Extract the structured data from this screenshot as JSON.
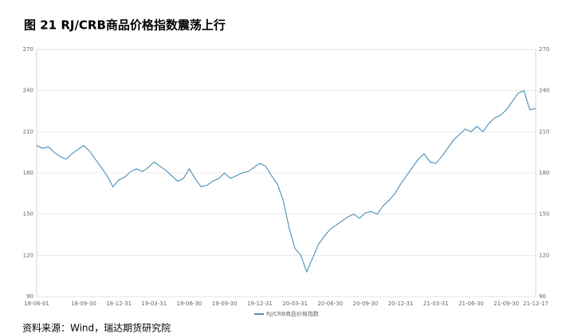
{
  "chart_data": {
    "type": "line",
    "title": "图 21 RJ/CRB商品价格指数震荡上行",
    "source": "资料来源：Wind，瑞达期货研究院",
    "categories": [
      "18-06-01",
      null,
      null,
      null,
      null,
      null,
      null,
      null,
      "18-09-30",
      null,
      null,
      null,
      null,
      null,
      "18-12-31",
      null,
      null,
      null,
      null,
      null,
      "19-03-31",
      null,
      null,
      null,
      null,
      null,
      "19-06-30",
      null,
      null,
      null,
      null,
      null,
      "19-09-30",
      null,
      null,
      null,
      null,
      null,
      "19-12-31",
      null,
      null,
      null,
      null,
      null,
      "20-03-31",
      null,
      null,
      null,
      null,
      null,
      "20-06-30",
      null,
      null,
      null,
      null,
      null,
      "20-09-30",
      null,
      null,
      null,
      null,
      null,
      "20-12-31",
      null,
      null,
      null,
      null,
      null,
      "21-03-31",
      null,
      null,
      null,
      null,
      null,
      "21-06-30",
      null,
      null,
      null,
      null,
      null,
      "21-09-30",
      null,
      null,
      null,
      null,
      "21-12-17"
    ],
    "series": [
      {
        "name": "RJ/CRB商品价格指数",
        "color": "#4a8db5",
        "values": [
          200,
          198,
          199,
          195,
          192,
          190,
          194,
          197,
          200,
          196,
          190,
          184,
          178,
          170,
          175,
          177,
          181,
          183,
          181,
          184,
          188,
          185,
          182,
          178,
          174,
          176,
          183,
          176,
          170,
          171,
          174,
          176,
          180,
          176,
          178,
          180,
          181,
          184,
          187,
          185,
          178,
          172,
          160,
          140,
          125,
          120,
          108,
          118,
          128,
          134,
          139,
          142,
          145,
          148,
          150,
          147,
          151,
          152,
          150,
          156,
          160,
          165,
          172,
          178,
          184,
          190,
          194,
          188,
          187,
          192,
          198,
          204,
          208,
          212,
          210,
          214,
          210,
          216,
          220,
          222,
          226,
          232,
          238,
          240,
          226,
          227
        ]
      }
    ],
    "ylim": [
      90,
      270
    ],
    "yticks": [
      90,
      120,
      150,
      180,
      210,
      240,
      270
    ],
    "grid": true,
    "legend": "bottom"
  }
}
